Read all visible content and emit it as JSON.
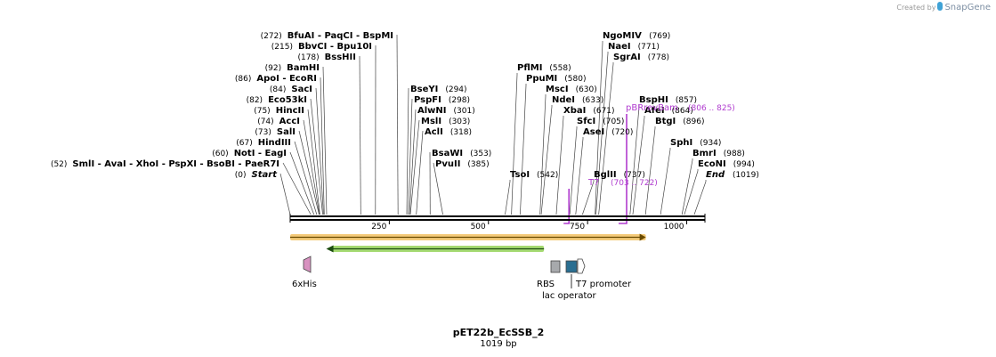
{
  "brand": {
    "prefix": "Created by",
    "name": "SnapGene"
  },
  "map": {
    "name": "pET22b_EcSSB_2",
    "length_label": "1019 bp",
    "length": 1019,
    "ticks": [
      {
        "value": 250,
        "label": "250"
      },
      {
        "value": 500,
        "label": "500"
      },
      {
        "value": 750,
        "label": "750"
      },
      {
        "value": 1000,
        "label": "1000"
      }
    ]
  },
  "left_enzymes": [
    {
      "row": 0,
      "pos_label": "(272)",
      "names": [
        "BfuAI",
        "PaqCI",
        "BspMI"
      ],
      "site": 272
    },
    {
      "row": 1,
      "pos_label": "(215)",
      "names": [
        "BbvCI",
        "Bpu10I"
      ],
      "site": 215
    },
    {
      "row": 2,
      "pos_label": "(178)",
      "names": [
        "BssHII"
      ],
      "site": 178
    },
    {
      "row": 3,
      "pos_label": "(92)",
      "names": [
        "BamHI"
      ],
      "site": 92
    },
    {
      "row": 4,
      "pos_label": "(86)",
      "names": [
        "ApoI",
        "EcoRI"
      ],
      "site": 86
    },
    {
      "row": 5,
      "pos_label": "(84)",
      "names": [
        "SacI"
      ],
      "site": 84
    },
    {
      "row": 6,
      "pos_label": "(82)",
      "names": [
        "Eco53kI"
      ],
      "site": 82
    },
    {
      "row": 7,
      "pos_label": "(75)",
      "names": [
        "HincII"
      ],
      "site": 75
    },
    {
      "row": 8,
      "pos_label": "(74)",
      "names": [
        "AccI"
      ],
      "site": 74
    },
    {
      "row": 9,
      "pos_label": "(73)",
      "names": [
        "SalI"
      ],
      "site": 73
    },
    {
      "row": 10,
      "pos_label": "(67)",
      "names": [
        "HindIII"
      ],
      "site": 67
    },
    {
      "row": 11,
      "pos_label": "(60)",
      "names": [
        "NotI",
        "EagI"
      ],
      "site": 60
    },
    {
      "row": 12,
      "pos_label": "(52)",
      "names": [
        "SmlI",
        "AvaI",
        "XhoI",
        "PspXI",
        "BsoBI",
        "PaeR7I"
      ],
      "site": 52
    },
    {
      "row": 13,
      "pos_label": "(0)",
      "names": [
        "Start"
      ],
      "site": 0,
      "italic": true
    }
  ],
  "mid_enzymes": [
    {
      "row": 5,
      "name": "BseYI",
      "pos_label": "(294)",
      "site": 294
    },
    {
      "row": 6,
      "name": "PspFI",
      "pos_label": "(298)",
      "site": 298
    },
    {
      "row": 7,
      "name": "AlwNI",
      "pos_label": "(301)",
      "site": 301
    },
    {
      "row": 8,
      "name": "MslI",
      "pos_label": "(303)",
      "site": 303
    },
    {
      "row": 9,
      "name": "AclI",
      "pos_label": "(318)",
      "site": 318
    },
    {
      "row": 11,
      "name": "BsaWI",
      "pos_label": "(353)",
      "site": 353
    },
    {
      "row": 12,
      "name": "PvuII",
      "pos_label": "(385)",
      "site": 385
    }
  ],
  "right_enzymes": [
    {
      "row": 3,
      "name": "PflMI",
      "pos_label": "(558)",
      "site": 558,
      "col": 0
    },
    {
      "row": 4,
      "name": "PpuMI",
      "pos_label": "(580)",
      "site": 580,
      "col": 1
    },
    {
      "row": 5,
      "name": "MscI",
      "pos_label": "(630)",
      "site": 630,
      "col": 2
    },
    {
      "row": 6,
      "name": "NdeI",
      "pos_label": "(633)",
      "site": 633,
      "col": 3
    },
    {
      "row": 7,
      "name": "XbaI",
      "pos_label": "(671)",
      "site": 671,
      "col": 4
    },
    {
      "row": 8,
      "name": "SfcI",
      "pos_label": "(705)",
      "site": 705,
      "col": 5
    },
    {
      "row": 9,
      "name": "AseI",
      "pos_label": "(720)",
      "site": 720,
      "col": 6
    },
    {
      "row": 13,
      "name": "TsoI",
      "pos_label": "(542)",
      "site": 542,
      "col": 7
    },
    {
      "row": 13,
      "name": "BglII",
      "pos_label": "(737)",
      "site": 737,
      "col": 8
    },
    {
      "row": 0,
      "name": "NgoMIV",
      "pos_label": "(769)",
      "site": 769,
      "col": 9
    },
    {
      "row": 1,
      "name": "NaeI",
      "pos_label": "(771)",
      "site": 771,
      "col": 10
    },
    {
      "row": 2,
      "name": "SgrAI",
      "pos_label": "(778)",
      "site": 778,
      "col": 11
    },
    {
      "row": 6,
      "name": "BspHI",
      "pos_label": "(857)",
      "site": 857,
      "col": 12
    },
    {
      "row": 7,
      "name": "AfeI",
      "pos_label": "(864)",
      "site": 864,
      "col": 13
    },
    {
      "row": 8,
      "name": "BtgI",
      "pos_label": "(896)",
      "site": 896,
      "col": 14
    },
    {
      "row": 10,
      "name": "SphI",
      "pos_label": "(934)",
      "site": 934,
      "col": 15
    },
    {
      "row": 11,
      "name": "BmrI",
      "pos_label": "(988)",
      "site": 988,
      "col": 16
    },
    {
      "row": 12,
      "name": "EcoNI",
      "pos_label": "(994)",
      "site": 994,
      "col": 17
    },
    {
      "row": 13,
      "name": "End",
      "pos_label": "(1019)",
      "site": 1019,
      "col": 18,
      "italic": true
    }
  ],
  "primers": [
    {
      "name": "T7",
      "range_label": "(703 .. 722)",
      "start": 703,
      "end": 722
    },
    {
      "name": "pBRrevBam",
      "range_label": "(806 .. 825)",
      "start": 806,
      "end": 825
    }
  ],
  "features": [
    {
      "name": "6xHis",
      "type": "his-tag",
      "start": 35,
      "end": 52,
      "color": "#d892c0"
    },
    {
      "name": "RBS",
      "type": "rbs",
      "start": 656,
      "end": 678,
      "color": "#a7a9ac"
    },
    {
      "name": "lac operator",
      "type": "operator",
      "start": 686,
      "end": 711,
      "color": "#2a6e91"
    },
    {
      "name": "T7 promoter",
      "type": "promoter",
      "start": 712,
      "end": 730,
      "color": "#ffffff"
    }
  ],
  "orf_tracks": [
    {
      "kind": "orange",
      "start": 0,
      "end": 870,
      "color": "#f0b84c",
      "direction": "right"
    },
    {
      "kind": "green",
      "start": 100,
      "end": 640,
      "color": "#8fd14f",
      "direction": "left"
    }
  ]
}
